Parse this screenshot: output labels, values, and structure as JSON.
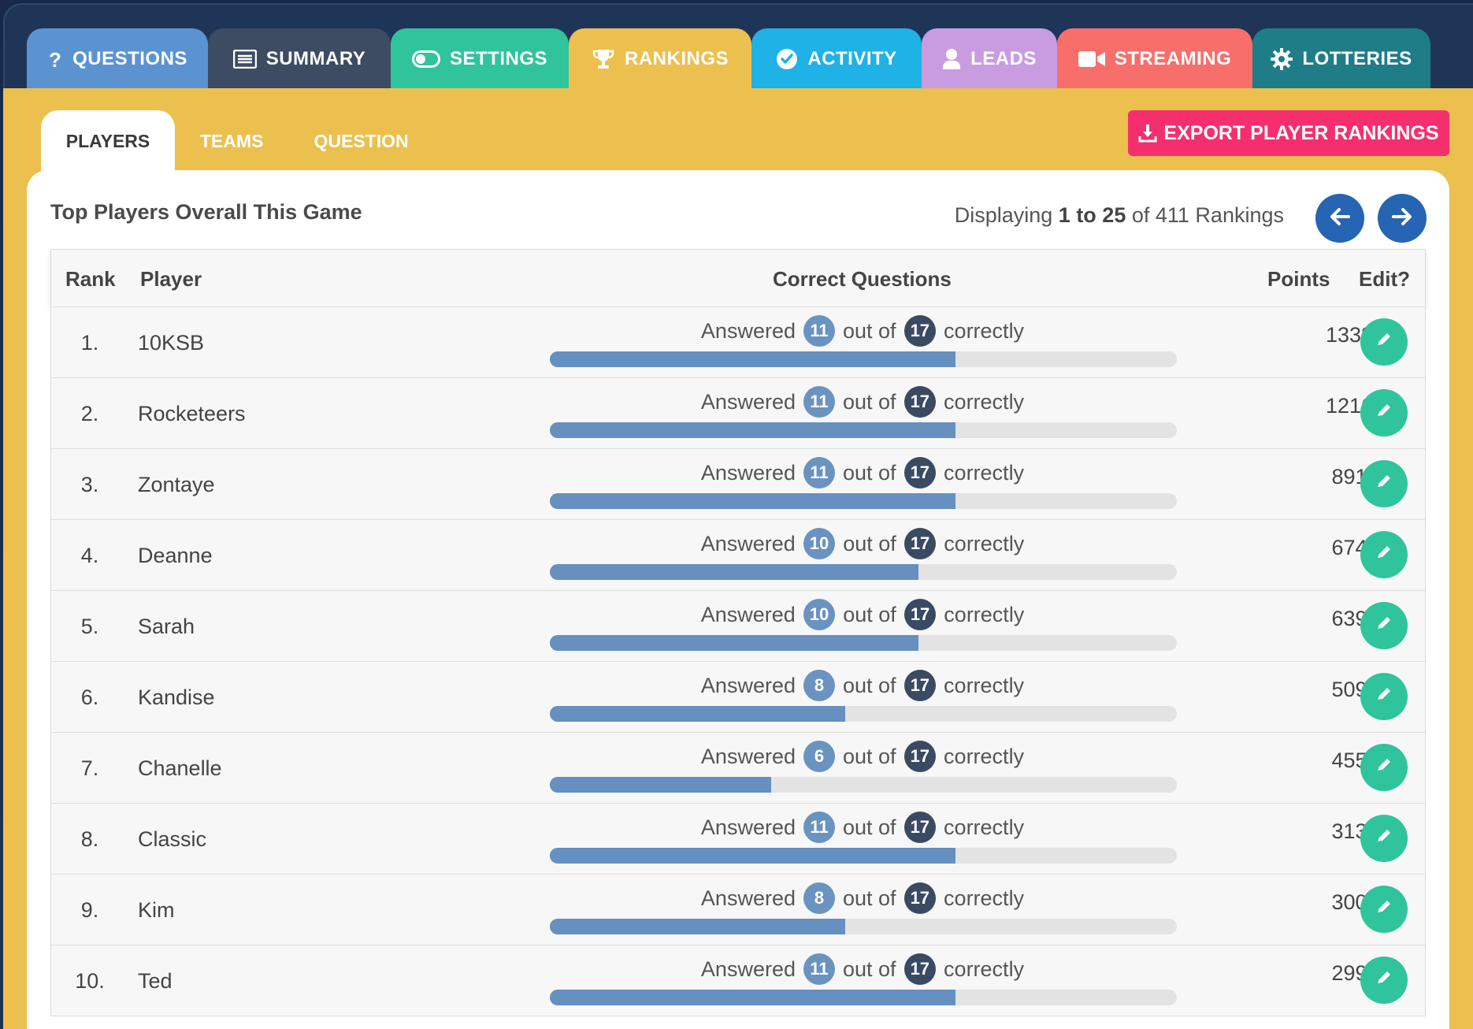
{
  "top_tabs": [
    {
      "label": "QUESTIONS",
      "icon": "question-icon"
    },
    {
      "label": "SUMMARY",
      "icon": "list-icon"
    },
    {
      "label": "SETTINGS",
      "icon": "toggle-icon"
    },
    {
      "label": "RANKINGS",
      "icon": "trophy-icon",
      "active": true
    },
    {
      "label": "ACTIVITY",
      "icon": "check-circle-icon"
    },
    {
      "label": "LEADS",
      "icon": "user-icon"
    },
    {
      "label": "STREAMING",
      "icon": "video-icon"
    },
    {
      "label": "LOTTERIES",
      "icon": "gear-icon"
    }
  ],
  "sub_tabs": [
    {
      "label": "PLAYERS",
      "active": true
    },
    {
      "label": "TEAMS"
    },
    {
      "label": "QUESTION"
    }
  ],
  "export_button": "EXPORT PLAYER RANKINGS",
  "panel": {
    "title": "Top Players Overall This Game",
    "displaying_prefix": "Displaying",
    "range": "1 to 25",
    "of_text": "of 411 Rankings"
  },
  "columns": {
    "rank": "Rank",
    "player": "Player",
    "correct": "Correct Questions",
    "points": "Points",
    "edit": "Edit?"
  },
  "answered_label": "Answered",
  "out_of_label": "out of",
  "correctly_label": "correctly",
  "rows": [
    {
      "rank": "1.",
      "player": "10KSB",
      "correct": 11,
      "total": 17,
      "points": "1338"
    },
    {
      "rank": "2.",
      "player": "Rocketeers",
      "correct": 11,
      "total": 17,
      "points": "1216"
    },
    {
      "rank": "3.",
      "player": "Zontaye",
      "correct": 11,
      "total": 17,
      "points": "891"
    },
    {
      "rank": "4.",
      "player": "Deanne",
      "correct": 10,
      "total": 17,
      "points": "674"
    },
    {
      "rank": "5.",
      "player": "Sarah",
      "correct": 10,
      "total": 17,
      "points": "639"
    },
    {
      "rank": "6.",
      "player": "Kandise",
      "correct": 8,
      "total": 17,
      "points": "509"
    },
    {
      "rank": "7.",
      "player": "Chanelle",
      "correct": 6,
      "total": 17,
      "points": "455"
    },
    {
      "rank": "8.",
      "player": "Classic",
      "correct": 11,
      "total": 17,
      "points": "313"
    },
    {
      "rank": "9.",
      "player": "Kim",
      "correct": 8,
      "total": 17,
      "points": "300"
    },
    {
      "rank": "10.",
      "player": "Ted",
      "correct": 11,
      "total": 17,
      "points": "299"
    }
  ],
  "colors": {
    "accent_gold": "#ebc04e",
    "export_pink": "#f52f6e",
    "edit_green": "#2fc49c",
    "nav_blue": "#2664b4"
  }
}
